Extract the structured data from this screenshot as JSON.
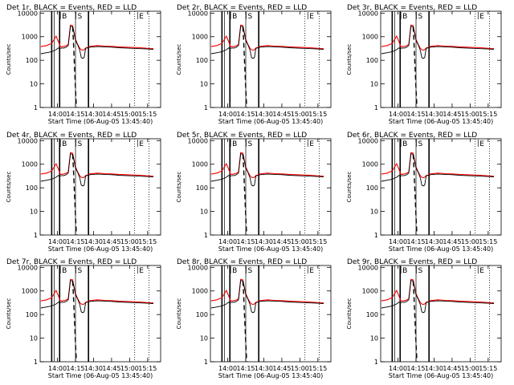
{
  "chart_data": [
    {
      "type": "line",
      "title": "Det 1r, BLACK = Events, RED = LLD",
      "xlabel": "Start Time (06-Aug-05 13:45:40)",
      "ylabel": "Counts/sec",
      "ylog": true,
      "ylim": [
        1,
        12000
      ],
      "xlim": [
        13.76,
        15.43
      ],
      "x_tick_labels": [
        "14:00",
        "14:15",
        "14:30",
        "14:45",
        "15:00",
        "15:15"
      ],
      "y_tick_labels": [
        "1",
        "10",
        "100",
        "1000",
        "10000"
      ],
      "markers": [
        "B",
        "S",
        "E"
      ],
      "series": []
    },
    {
      "type": "line",
      "title": "Det 2r, BLACK = Events, RED = LLD",
      "xlabel": "Start Time (06-Aug-05 13:45:40)",
      "ylabel": "Counts/sec",
      "ylog": true,
      "ylim": [
        1,
        12000
      ],
      "xlim": [
        13.76,
        15.43
      ],
      "x_tick_labels": [
        "14:00",
        "14:15",
        "14:30",
        "14:45",
        "15:00",
        "15:15"
      ],
      "y_tick_labels": [
        "1",
        "10",
        "100",
        "1000",
        "10000"
      ],
      "markers": [
        "B",
        "S",
        "E"
      ],
      "series": []
    },
    {
      "type": "line",
      "title": "Det 3r, BLACK = Events, RED = LLD",
      "xlabel": "Start Time (06-Aug-05 13:45:40)",
      "ylabel": "Counts/sec",
      "ylog": true,
      "ylim": [
        1,
        12000
      ],
      "xlim": [
        13.76,
        15.43
      ],
      "x_tick_labels": [
        "14:00",
        "14:15",
        "14:30",
        "14:45",
        "15:00",
        "15:15"
      ],
      "y_tick_labels": [
        "1",
        "10",
        "100",
        "1000",
        "10000"
      ],
      "markers": [
        "B",
        "S",
        "E"
      ],
      "series": []
    },
    {
      "type": "line",
      "title": "Det 4r, BLACK = Events, RED = LLD",
      "xlabel": "Start Time (06-Aug-05 13:45:40)",
      "ylabel": "Counts/sec",
      "ylog": true,
      "ylim": [
        1,
        12000
      ],
      "xlim": [
        13.76,
        15.43
      ],
      "x_tick_labels": [
        "14:00",
        "14:15",
        "14:30",
        "14:45",
        "15:00",
        "15:15"
      ],
      "y_tick_labels": [
        "1",
        "10",
        "100",
        "1000",
        "10000"
      ],
      "markers": [
        "B",
        "S",
        "E"
      ],
      "series": []
    },
    {
      "type": "line",
      "title": "Det 5r, BLACK = Events, RED = LLD",
      "xlabel": "Start Time (06-Aug-05 13:45:40)",
      "ylabel": "Counts/sec",
      "ylog": true,
      "ylim": [
        1,
        12000
      ],
      "xlim": [
        13.76,
        15.43
      ],
      "x_tick_labels": [
        "14:00",
        "14:15",
        "14:30",
        "14:45",
        "15:00",
        "15:15"
      ],
      "y_tick_labels": [
        "1",
        "10",
        "100",
        "1000",
        "10000"
      ],
      "markers": [
        "B",
        "S",
        "E"
      ],
      "series": []
    },
    {
      "type": "line",
      "title": "Det 6r, BLACK = Events, RED = LLD",
      "xlabel": "Start Time (06-Aug-05 13:45:40)",
      "ylabel": "Counts/sec",
      "ylog": true,
      "ylim": [
        1,
        12000
      ],
      "xlim": [
        13.76,
        15.43
      ],
      "x_tick_labels": [
        "14:00",
        "14:15",
        "14:30",
        "14:45",
        "15:00",
        "15:15"
      ],
      "y_tick_labels": [
        "1",
        "10",
        "100",
        "1000",
        "10000"
      ],
      "markers": [
        "B",
        "S",
        "E"
      ],
      "series": []
    },
    {
      "type": "line",
      "title": "Det 7r, BLACK = Events, RED = LLD",
      "xlabel": "Start Time (06-Aug-05 13:45:40)",
      "ylabel": "Counts/sec",
      "ylog": true,
      "ylim": [
        1,
        12000
      ],
      "xlim": [
        13.76,
        15.43
      ],
      "x_tick_labels": [
        "14:00",
        "14:15",
        "14:30",
        "14:45",
        "15:00",
        "15:15"
      ],
      "y_tick_labels": [
        "1",
        "10",
        "100",
        "1000",
        "10000"
      ],
      "markers": [
        "B",
        "S",
        "E"
      ],
      "series": []
    },
    {
      "type": "line",
      "title": "Det 8r, BLACK = Events, RED = LLD",
      "xlabel": "Start Time (06-Aug-05 13:45:40)",
      "ylabel": "Counts/sec",
      "ylog": true,
      "ylim": [
        1,
        12000
      ],
      "xlim": [
        13.76,
        15.43
      ],
      "x_tick_labels": [
        "14:00",
        "14:15",
        "14:30",
        "14:45",
        "15:00",
        "15:15"
      ],
      "y_tick_labels": [
        "1",
        "10",
        "100",
        "1000",
        "10000"
      ],
      "markers": [
        "B",
        "S",
        "E"
      ],
      "series": []
    },
    {
      "type": "line",
      "title": "Det 9r, BLACK = Events, RED = LLD",
      "xlabel": "Start Time (06-Aug-05 13:45:40)",
      "ylabel": "Counts/sec",
      "ylog": true,
      "ylim": [
        1,
        12000
      ],
      "xlim": [
        13.76,
        15.43
      ],
      "x_tick_labels": [
        "14:00",
        "14:15",
        "14:30",
        "14:45",
        "15:00",
        "15:15"
      ],
      "y_tick_labels": [
        "1",
        "10",
        "100",
        "1000",
        "10000"
      ],
      "markers": [
        "B",
        "S",
        "E"
      ],
      "series": []
    }
  ],
  "shared": {
    "x": [
      13.77,
      13.85,
      13.92,
      13.98,
      14.01,
      14.04,
      14.06,
      14.09,
      14.12,
      14.15,
      14.18,
      14.21,
      14.23,
      14.25,
      14.28,
      14.31,
      14.33,
      14.35,
      14.37,
      14.39,
      14.42,
      14.45,
      14.55,
      14.65,
      14.75,
      14.85,
      14.95,
      15.05,
      15.15,
      15.25,
      15.33
    ],
    "events": [
      190,
      210,
      230,
      280,
      330,
      320,
      330,
      330,
      360,
      420,
      2800,
      2600,
      1400,
      700,
      450,
      260,
      130,
      120,
      130,
      320,
      340,
      360,
      380,
      370,
      360,
      340,
      330,
      320,
      310,
      300,
      290
    ],
    "lld": [
      380,
      420,
      520,
      1050,
      650,
      380,
      370,
      390,
      410,
      470,
      3100,
      2950,
      1500,
      780,
      470,
      320,
      280,
      270,
      280,
      330,
      350,
      390,
      420,
      400,
      390,
      370,
      360,
      350,
      340,
      320,
      310
    ],
    "dashed_x": [
      14.21,
      14.22,
      14.23,
      14.24,
      14.25,
      14.26,
      14.27
    ],
    "dashed_y": [
      2600,
      800,
      150,
      30,
      6,
      1.5,
      1
    ],
    "solid_lines": [
      13.92,
      14.03,
      14.43
    ],
    "thin_lines": [
      13.955,
      14.25
    ],
    "dotted_lines": [
      15.07,
      15.27
    ],
    "marker_x": [
      14.04,
      14.255,
      15.11
    ],
    "colors": {
      "events": "#000000",
      "lld": "#ff0000",
      "axis": "#000000"
    }
  }
}
